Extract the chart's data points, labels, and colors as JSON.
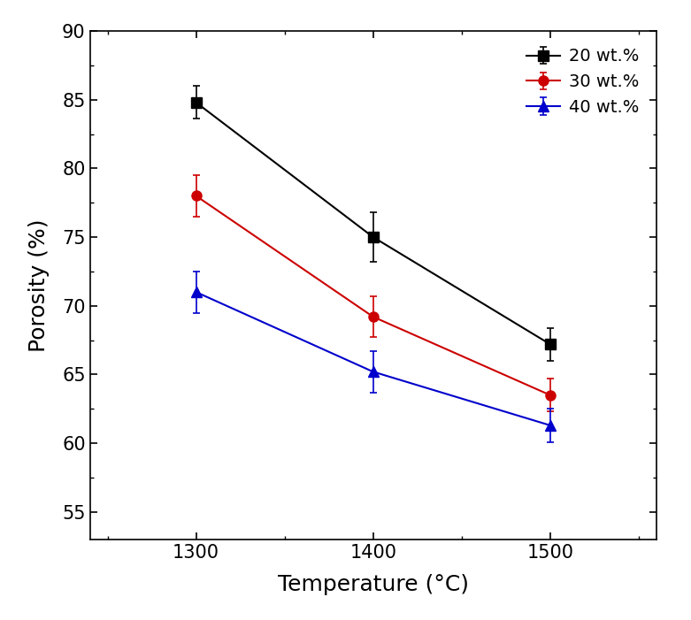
{
  "title": "",
  "xlabel": "Temperature (°C)",
  "ylabel": "Porosity (%)",
  "x": [
    1300,
    1400,
    1500
  ],
  "series": [
    {
      "label": "20 wt.%",
      "y": [
        84.8,
        75.0,
        67.2
      ],
      "yerr": [
        1.2,
        1.8,
        1.2
      ],
      "color": "#000000",
      "marker": "s",
      "markersize": 8
    },
    {
      "label": "30 wt.%",
      "y": [
        78.0,
        69.2,
        63.5
      ],
      "yerr": [
        1.5,
        1.5,
        1.2
      ],
      "color": "#cc0000",
      "marker": "o",
      "markersize": 8
    },
    {
      "label": "40 wt.%",
      "y": [
        71.0,
        65.2,
        61.3
      ],
      "yerr": [
        1.5,
        1.5,
        1.2
      ],
      "color": "#0000cc",
      "marker": "^",
      "markersize": 8
    }
  ],
  "xlim": [
    1240,
    1560
  ],
  "ylim": [
    53,
    90
  ],
  "yticks": [
    55,
    60,
    65,
    70,
    75,
    80,
    85,
    90
  ],
  "xticks": [
    1300,
    1400,
    1500
  ],
  "legend_loc": "upper right",
  "background_color": "#ffffff",
  "capsize": 3,
  "linewidth": 1.5
}
